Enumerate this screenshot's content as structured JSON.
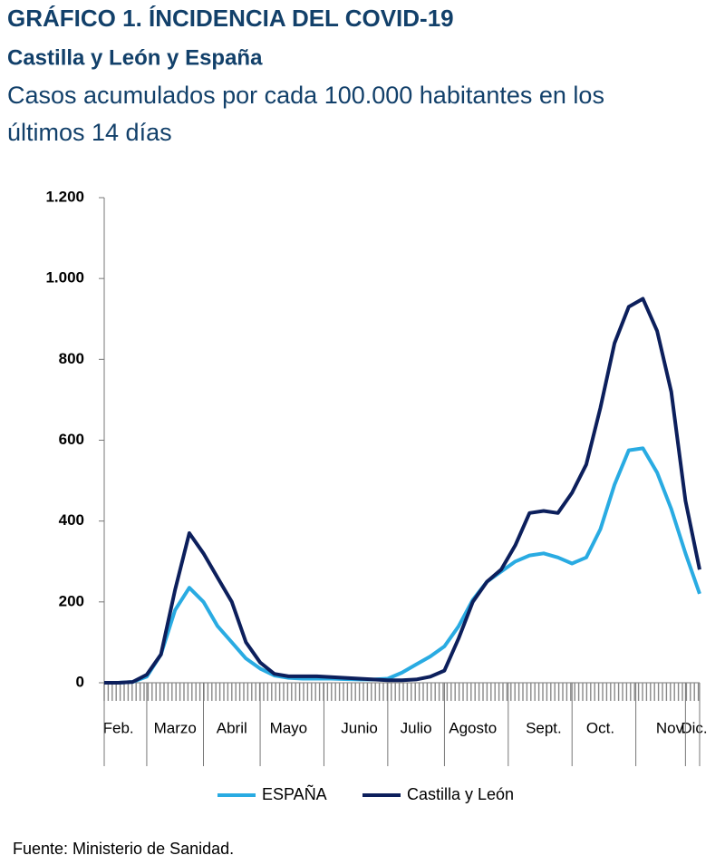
{
  "chart_data": {
    "type": "line",
    "title": "GRÁFICO 1. ÍNCIDENCIA DEL COVID-19",
    "subtitle": [
      "Castilla y León y España",
      "Casos acumulados por cada 100.000 habitantes en los",
      "últimos 14 días"
    ],
    "source": "Fuente: Ministerio de Sanidad.",
    "categories": [
      null,
      "Feb.",
      null,
      null,
      null,
      "Marzo",
      null,
      null,
      null,
      "Abril",
      null,
      null,
      null,
      "Mayo",
      null,
      null,
      null,
      null,
      "Junio",
      null,
      null,
      null,
      "Julio",
      null,
      null,
      null,
      "Agosto",
      null,
      null,
      null,
      null,
      "Sept.",
      null,
      null,
      null,
      "Oct.",
      null,
      null,
      null,
      null,
      "Nov.",
      null,
      "Dic."
    ],
    "series": [
      {
        "name": "ESPAÑA",
        "color": "#29abe2",
        "values": [
          0,
          0,
          2,
          15,
          70,
          180,
          235,
          200,
          140,
          100,
          60,
          35,
          18,
          12,
          10,
          10,
          10,
          9,
          8,
          8,
          10,
          25,
          45,
          65,
          90,
          140,
          205,
          250,
          275,
          300,
          315,
          320,
          310,
          295,
          310,
          380,
          490,
          575,
          580,
          520,
          430,
          320,
          220
        ]
      },
      {
        "name": "Castilla y León",
        "color": "#0c1f5c",
        "values": [
          0,
          0,
          2,
          20,
          70,
          230,
          370,
          320,
          260,
          200,
          100,
          50,
          22,
          16,
          16,
          16,
          14,
          12,
          10,
          8,
          6,
          6,
          8,
          15,
          30,
          110,
          200,
          250,
          280,
          340,
          420,
          425,
          420,
          470,
          540,
          680,
          840,
          930,
          950,
          870,
          720,
          450,
          280
        ]
      }
    ],
    "ylim": [
      0,
      1200
    ],
    "yticks": [
      0,
      200,
      400,
      600,
      800,
      {
        "value": 1000,
        "label": "1.000"
      },
      {
        "value": 1200,
        "label": "1.200"
      }
    ],
    "grid": false,
    "legend": "bottom"
  }
}
